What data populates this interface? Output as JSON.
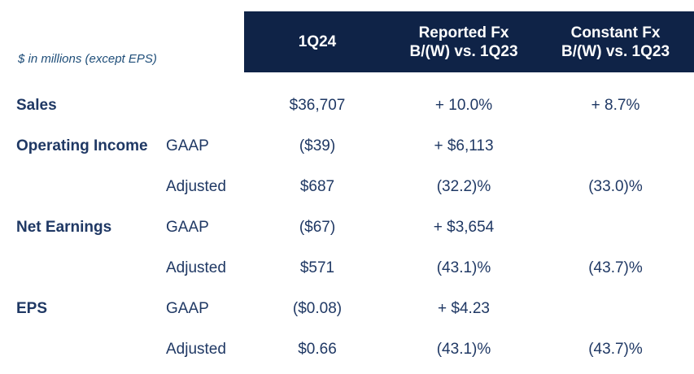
{
  "note": "$ in millions (except EPS)",
  "colors": {
    "header_bg": "#0f2347",
    "text": "#1f3864",
    "header_text": "#ffffff",
    "note_text": "#1f4e79"
  },
  "header": {
    "columns": [
      {
        "line1": "1Q24",
        "line2": ""
      },
      {
        "line1": "Reported Fx",
        "line2": "B/(W) vs. 1Q23"
      },
      {
        "line1": "Constant Fx",
        "line2": "B/(W) vs. 1Q23"
      }
    ]
  },
  "rows": [
    {
      "label": "Sales",
      "sublabel": "",
      "q24": "$36,707",
      "reported": "+ 10.0%",
      "constant": "+ 8.7%"
    },
    {
      "label": "Operating Income",
      "sublabel": "GAAP",
      "q24": "($39)",
      "reported": "+ $6,113",
      "constant": ""
    },
    {
      "label": "",
      "sublabel": "Adjusted",
      "q24": "$687",
      "reported": "(32.2)%",
      "constant": "(33.0)%"
    },
    {
      "label": "Net Earnings",
      "sublabel": "GAAP",
      "q24": "($67)",
      "reported": "+ $3,654",
      "constant": ""
    },
    {
      "label": "",
      "sublabel": "Adjusted",
      "q24": "$571",
      "reported": "(43.1)%",
      "constant": "(43.7)%"
    },
    {
      "label": "EPS",
      "sublabel": "GAAP",
      "q24": "($0.08)",
      "reported": "+ $4.23",
      "constant": ""
    },
    {
      "label": "",
      "sublabel": "Adjusted",
      "q24": "$0.66",
      "reported": "(43.1)%",
      "constant": "(43.7)%"
    }
  ]
}
